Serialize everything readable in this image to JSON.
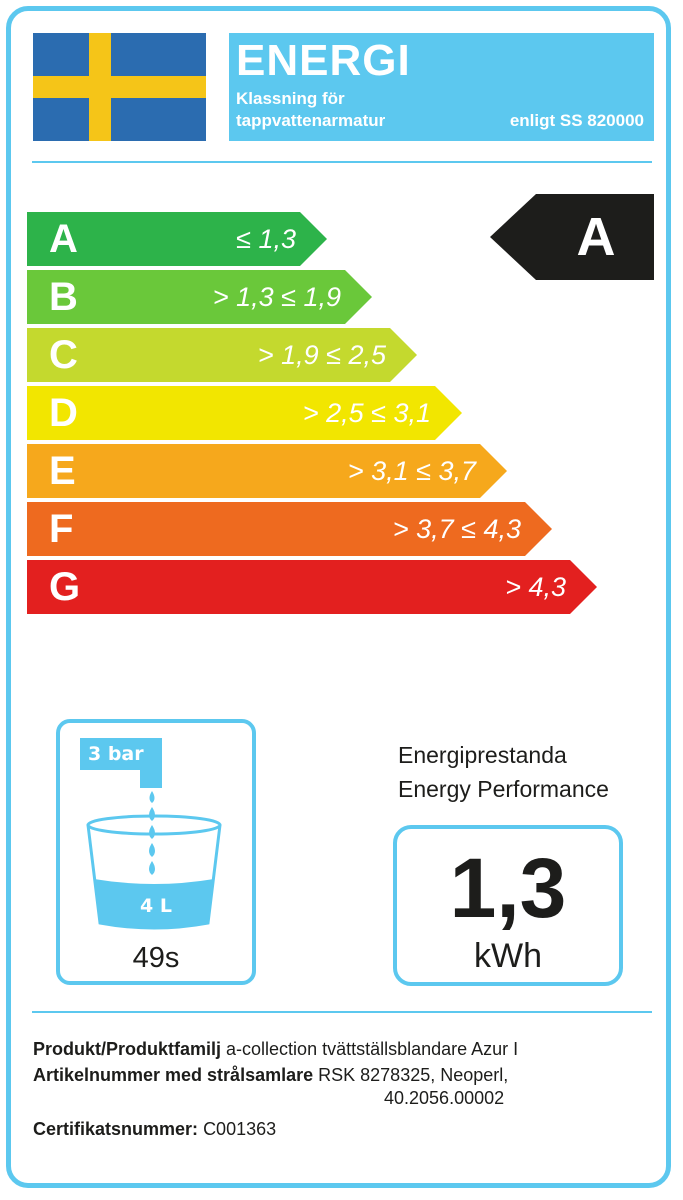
{
  "header": {
    "title": "ENERGI",
    "subtitle_line1": "Klassning för",
    "subtitle_line2": "tappvattenarmatur",
    "standard": "enligt SS 820000"
  },
  "flag": {
    "field_color": "#2b6cb0",
    "cross_color": "#f5c518"
  },
  "scale": [
    {
      "letter": "A",
      "range": "≤ 1,3",
      "color": "#2db34a"
    },
    {
      "letter": "B",
      "range": "> 1,3 ≤ 1,9",
      "color": "#6ac83a"
    },
    {
      "letter": "C",
      "range": "> 1,9 ≤ 2,5",
      "color": "#c4d92e"
    },
    {
      "letter": "D",
      "range": "> 2,5 ≤ 3,1",
      "color": "#f2e600"
    },
    {
      "letter": "E",
      "range": "> 3,1 ≤ 3,7",
      "color": "#f6a81c"
    },
    {
      "letter": "F",
      "range": "> 3,7 ≤ 4,3",
      "color": "#ee6a1f"
    },
    {
      "letter": "G",
      "range": "> 4,3",
      "color": "#e3201f"
    }
  ],
  "rating": {
    "class": "A"
  },
  "water_test": {
    "pressure": "3 bar",
    "volume": "4 L",
    "time": "49s"
  },
  "performance": {
    "label_sv": "Energiprestanda",
    "label_en": "Energy Performance",
    "value": "1,3",
    "unit": "kWh"
  },
  "product": {
    "family_label": "Produkt/Produktfamilj",
    "family_value": "a-collection tvättställsblandare Azur I",
    "article_label": "Artikelnummer med strålsamlare",
    "article_value_line1": "RSK 8278325, Neoperl,",
    "article_value_line2": "40.2056.00002",
    "cert_label": "Certifikatsnummer:",
    "cert_value": "C001363"
  },
  "accent_color": "#5cc8ef"
}
